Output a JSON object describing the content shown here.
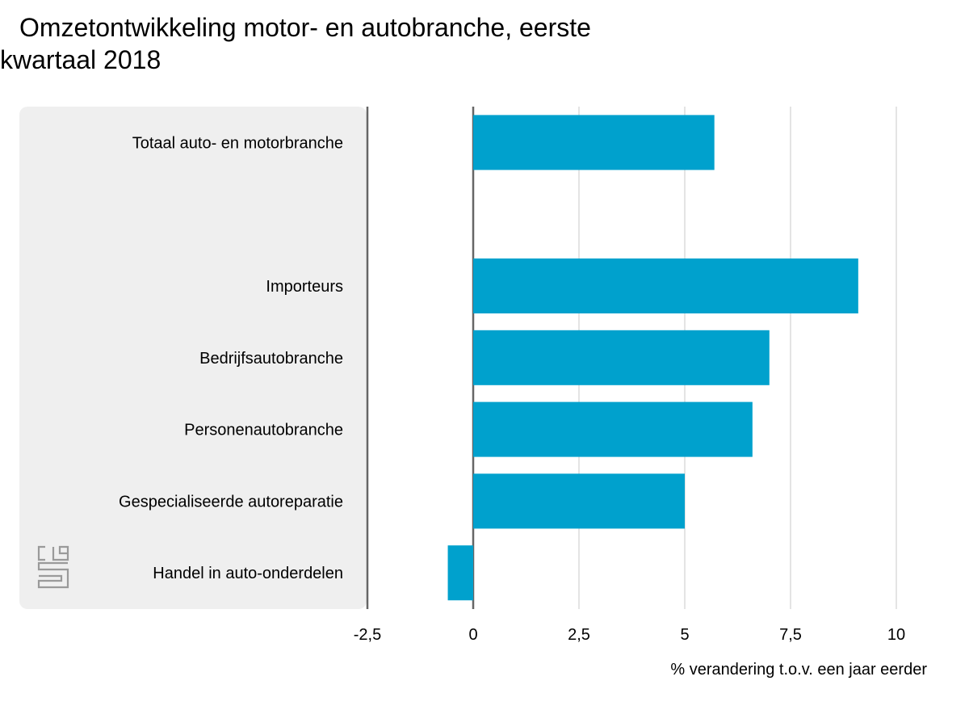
{
  "title_line1": "Omzetontwikkeling motor- en autobranche, eerste",
  "title_line2": "kwartaal 2018",
  "colors": {
    "bar": "#00a1cd",
    "panel": "#efefef",
    "axis": "#666666",
    "grid": "#c8c8c8",
    "logo": "#9a9a9a"
  },
  "chart_data": {
    "type": "bar",
    "orientation": "horizontal",
    "title": "Omzetontwikkeling motor- en autobranche, eerste kwartaal 2018",
    "xlabel": "% verandering t.o.v. een jaar eerder",
    "ylabel": "",
    "xlim": [
      -2.5,
      10
    ],
    "ticks": [
      -2.5,
      0,
      2.5,
      5,
      7.5,
      10
    ],
    "tick_labels": [
      "-2,5",
      "0",
      "2,5",
      "5",
      "7,5",
      "10"
    ],
    "categories": [
      "Totaal auto- en motorbranche",
      "",
      "Importeurs",
      "Bedrijfsautobranche",
      "Personenautobranche",
      "Gespecialiseerde autoreparatie",
      "Handel in auto-onderdelen"
    ],
    "values": [
      5.7,
      null,
      9.1,
      7.0,
      6.6,
      5.0,
      -0.6
    ]
  }
}
